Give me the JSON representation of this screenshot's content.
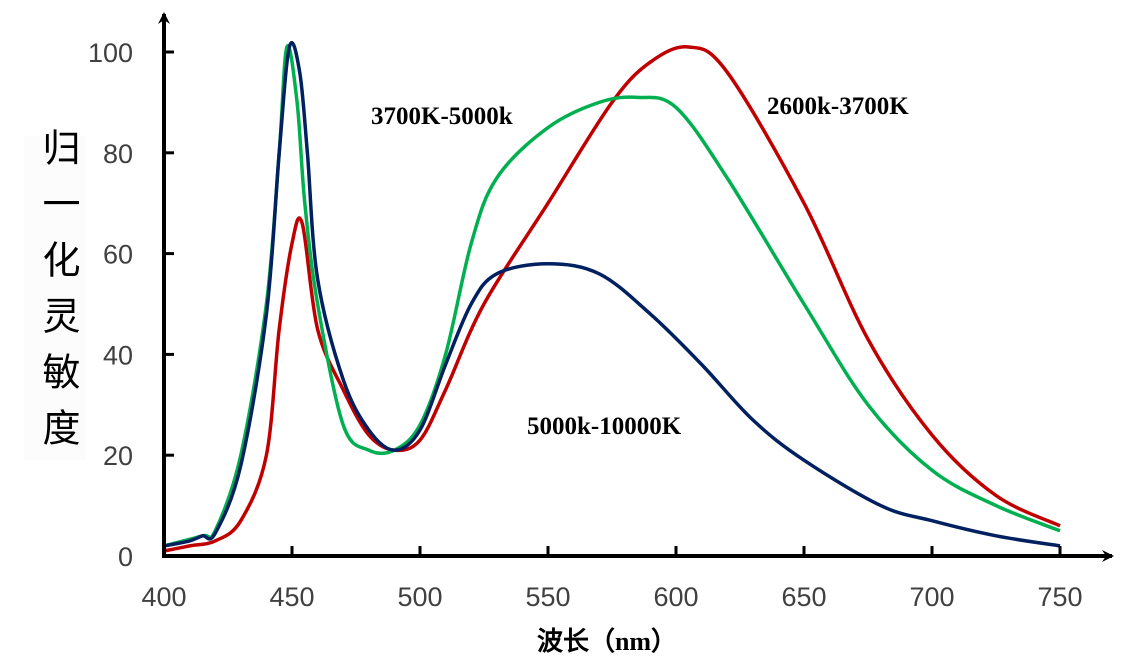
{
  "chart_data": {
    "type": "line",
    "title": "",
    "xlabel": "波长（nm）",
    "ylabel": "归一化灵敏度",
    "xlim": [
      400,
      750
    ],
    "ylim": [
      0,
      105
    ],
    "xticks": [
      400,
      450,
      500,
      550,
      600,
      650,
      700,
      750
    ],
    "yticks": [
      0,
      20,
      40,
      60,
      80,
      100
    ],
    "xtick_labels": [
      "400",
      "450",
      "500",
      "550",
      "600",
      "650",
      "700",
      "750"
    ],
    "ytick_labels": [
      "0",
      "20",
      "40",
      "60",
      "80",
      "100"
    ],
    "grid": false,
    "legend": "inline-labels",
    "series": [
      {
        "name": "2600k-3700K",
        "color": "#c00000",
        "x": [
          400,
          410,
          420,
          430,
          440,
          445,
          450,
          454,
          460,
          470,
          480,
          490,
          500,
          510,
          525,
          550,
          575,
          590,
          605,
          620,
          650,
          675,
          700,
          725,
          750
        ],
        "y": [
          1,
          2,
          3,
          7,
          20,
          45,
          62,
          66,
          45,
          33,
          24,
          21,
          23,
          33,
          50,
          70,
          90,
          98,
          101,
          96,
          70,
          43,
          24,
          12,
          6
        ]
      },
      {
        "name": "3700K-5000k",
        "color": "#00b050",
        "x": [
          400,
          415,
          420,
          430,
          440,
          445,
          448,
          452,
          455,
          460,
          470,
          480,
          490,
          500,
          510,
          520,
          530,
          550,
          570,
          585,
          600,
          620,
          650,
          675,
          700,
          725,
          750
        ],
        "y": [
          2,
          4,
          5,
          20,
          50,
          80,
          101,
          90,
          70,
          50,
          26,
          21,
          21,
          26,
          40,
          62,
          75,
          85,
          90,
          91,
          89,
          75,
          50,
          30,
          17,
          10,
          5
        ]
      },
      {
        "name": "5000k-10000K",
        "color": "#002060",
        "x": [
          400,
          410,
          415,
          420,
          430,
          440,
          445,
          449,
          453,
          456,
          460,
          470,
          480,
          490,
          500,
          510,
          520,
          530,
          550,
          570,
          590,
          610,
          630,
          650,
          680,
          700,
          725,
          750
        ],
        "y": [
          2,
          3,
          4,
          4.5,
          18,
          48,
          80,
          101,
          96,
          80,
          55,
          35,
          25,
          21,
          25,
          38,
          50,
          56,
          58,
          56,
          48,
          38,
          27,
          19,
          10,
          7,
          4,
          2
        ]
      }
    ],
    "annotations": [
      {
        "text": "3700K-5000k",
        "series": "3700K-5000k"
      },
      {
        "text": "2600k-3700K",
        "series": "2600k-3700K"
      },
      {
        "text": "5000k-10000K",
        "series": "5000k-10000K"
      }
    ]
  }
}
